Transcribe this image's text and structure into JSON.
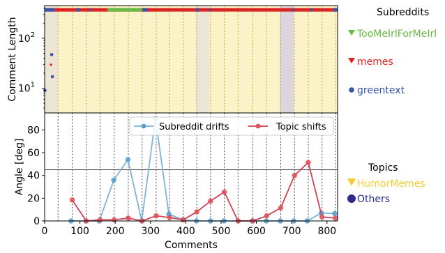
{
  "colors": {
    "subreddit_series": [
      "#66bb44",
      "#dd2222",
      "#3355aa"
    ],
    "topic_series": [
      "#f5cc33",
      "#2d2b8c"
    ],
    "drift_line": "#7ab4d8",
    "drift_marker": "#5a9ccc",
    "shift_line": "#d04050",
    "shift_marker": "#e0505a",
    "band_humor": "#fbf2c8",
    "band_others": "#ddd5dd",
    "band_unknown": "#ece5d6",
    "top_strip_base": "#dd2222"
  },
  "chart_data": [
    {
      "type": "scatter",
      "ylabel": "Comment Length",
      "yscale": "log",
      "yticks": [
        {
          "value": 10,
          "base": "10",
          "exp": "1"
        },
        {
          "value": 100,
          "base": "10",
          "exp": "2"
        }
      ],
      "ylim": [
        3.2,
        450
      ],
      "xlim": [
        0,
        830
      ],
      "grid_vertical_dotted": true,
      "legend_title": "Subreddits",
      "legend": [
        {
          "name": "TooMeIrlForMeIrl",
          "marker": "triangle-down",
          "color": "#66bb44"
        },
        {
          "name": "memes",
          "marker": "triangle-down",
          "color": "#dd2222"
        },
        {
          "name": "greentext",
          "marker": "circle",
          "color": "#3355aa"
        }
      ],
      "points": [
        {
          "x": 1,
          "y": 9,
          "series": "greentext"
        },
        {
          "x": 20,
          "y": 47,
          "series": "greentext"
        },
        {
          "x": 18,
          "y": 29,
          "series": "memes"
        },
        {
          "x": 22,
          "y": 17,
          "series": "greentext"
        }
      ],
      "top_strip": {
        "y": 370,
        "base_series": "memes",
        "segments": [
          {
            "from": 0,
            "to": 28,
            "series": "greentext"
          },
          {
            "from": 90,
            "to": 100,
            "series": "greentext"
          },
          {
            "from": 128,
            "to": 133,
            "series": "greentext"
          },
          {
            "from": 178,
            "to": 276,
            "series": "TooMeIrlForMeIrl"
          },
          {
            "from": 278,
            "to": 292,
            "series": "greentext"
          },
          {
            "from": 428,
            "to": 437,
            "series": "greentext"
          },
          {
            "from": 466,
            "to": 470,
            "series": "greentext"
          },
          {
            "from": 700,
            "to": 705,
            "series": "greentext"
          },
          {
            "from": 752,
            "to": 758,
            "series": "greentext"
          },
          {
            "from": 818,
            "to": 830,
            "series": "greentext"
          }
        ]
      }
    },
    {
      "type": "line",
      "xlabel": "Comments",
      "ylabel": "Angle [deg]",
      "xlim": [
        0,
        830
      ],
      "ylim": [
        0,
        95
      ],
      "xticks": [
        0,
        100,
        200,
        300,
        400,
        500,
        600,
        700,
        800
      ],
      "yticks": [
        0,
        20,
        40,
        60,
        80
      ],
      "threshold": 45,
      "grid_vertical_dotted": true,
      "legend_placement": "top-right",
      "series": [
        {
          "name": "Subreddit drifts",
          "x": [
            75,
            117,
            155,
            196,
            236,
            275,
            314,
            352,
            392,
            430,
            470,
            508,
            548,
            588,
            628,
            668,
            706,
            744,
            784,
            822
          ],
          "y": [
            0,
            0,
            0,
            36,
            54,
            0,
            90,
            6,
            1,
            0,
            0,
            0,
            0,
            0,
            0,
            0,
            0,
            0,
            7,
            6.5
          ]
        },
        {
          "name": "Topic shifts",
          "x": [
            78,
            118,
            157,
            197,
            237,
            276,
            316,
            354,
            393,
            431,
            470,
            509,
            548,
            590,
            629,
            669,
            708,
            747,
            786,
            824
          ],
          "y": [
            18.5,
            0,
            1,
            1,
            2.5,
            0,
            4.5,
            3,
            1,
            8,
            17.5,
            25.5,
            0,
            0,
            4.5,
            11.5,
            40,
            51.5,
            3.5,
            2.5
          ]
        }
      ]
    },
    {
      "type": "table",
      "legend_title": "Topics",
      "legend": [
        {
          "name": "HumorMemes",
          "marker": "triangle-down",
          "color": "#f5cc33"
        },
        {
          "name": "Others",
          "marker": "circle",
          "color": "#2d2b8c"
        }
      ],
      "bands": [
        {
          "from": 0,
          "to": 38,
          "topic": "unknown"
        },
        {
          "from": 38,
          "to": 428,
          "topic": "HumorMemes"
        },
        {
          "from": 428,
          "to": 467,
          "topic": "unknown"
        },
        {
          "from": 467,
          "to": 666,
          "topic": "HumorMemes"
        },
        {
          "from": 666,
          "to": 706,
          "topic": "Others"
        },
        {
          "from": 706,
          "to": 830,
          "topic": "HumorMemes"
        }
      ],
      "dotted_gridlines_x": [
        38,
        78,
        118,
        157,
        197,
        237,
        276,
        316,
        354,
        393,
        431,
        470,
        509,
        548,
        590,
        629,
        669,
        708,
        747,
        786,
        824
      ]
    }
  ]
}
